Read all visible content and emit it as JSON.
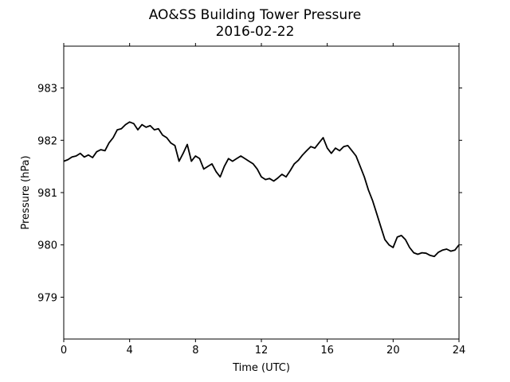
{
  "chart_data": {
    "type": "line",
    "title": "AO&SS Building Tower Pressure",
    "subtitle": "2016-02-22",
    "xlabel": "Time (UTC)",
    "ylabel": "Pressure (hPa)",
    "xlim": [
      0,
      24
    ],
    "ylim": [
      978.2,
      983.8
    ],
    "xticks": [
      0,
      4,
      8,
      12,
      16,
      20,
      24
    ],
    "yticks": [
      979,
      980,
      981,
      982,
      983
    ],
    "grid": false,
    "series": [
      {
        "color": "#000000",
        "x": [
          0,
          0.25,
          0.5,
          0.75,
          1.0,
          1.25,
          1.5,
          1.75,
          2.0,
          2.25,
          2.5,
          2.75,
          3.0,
          3.25,
          3.5,
          3.75,
          4.0,
          4.25,
          4.5,
          4.75,
          5.0,
          5.25,
          5.5,
          5.75,
          6.0,
          6.25,
          6.5,
          6.75,
          7.0,
          7.25,
          7.5,
          7.75,
          8.0,
          8.25,
          8.5,
          8.75,
          9.0,
          9.25,
          9.5,
          9.75,
          10.0,
          10.25,
          10.5,
          10.75,
          11.0,
          11.25,
          11.5,
          11.75,
          12.0,
          12.25,
          12.5,
          12.75,
          13.0,
          13.25,
          13.5,
          13.75,
          14.0,
          14.25,
          14.5,
          14.75,
          15.0,
          15.25,
          15.5,
          15.75,
          16.0,
          16.25,
          16.5,
          16.75,
          17.0,
          17.25,
          17.5,
          17.75,
          18.0,
          18.25,
          18.5,
          18.75,
          19.0,
          19.25,
          19.5,
          19.75,
          20.0,
          20.25,
          20.5,
          20.75,
          21.0,
          21.25,
          21.5,
          21.75,
          22.0,
          22.25,
          22.5,
          22.75,
          23.0,
          23.25,
          23.5,
          23.75,
          24.0
        ],
        "y": [
          981.6,
          981.63,
          981.68,
          981.7,
          981.75,
          981.68,
          981.72,
          981.67,
          981.78,
          981.82,
          981.8,
          981.95,
          982.05,
          982.2,
          982.22,
          982.3,
          982.35,
          982.32,
          982.2,
          982.3,
          982.25,
          982.28,
          982.2,
          982.22,
          982.1,
          982.05,
          981.95,
          981.9,
          981.6,
          981.75,
          981.92,
          981.6,
          981.7,
          981.65,
          981.45,
          981.5,
          981.55,
          981.4,
          981.3,
          981.5,
          981.65,
          981.6,
          981.65,
          981.7,
          981.65,
          981.6,
          981.55,
          981.45,
          981.3,
          981.25,
          981.27,
          981.22,
          981.28,
          981.35,
          981.3,
          981.42,
          981.55,
          981.62,
          981.72,
          981.8,
          981.88,
          981.85,
          981.95,
          982.05,
          981.85,
          981.75,
          981.85,
          981.8,
          981.88,
          981.9,
          981.8,
          981.7,
          981.5,
          981.3,
          981.05,
          980.85,
          980.6,
          980.35,
          980.1,
          980.0,
          979.95,
          980.15,
          980.18,
          980.1,
          979.95,
          979.85,
          979.82,
          979.85,
          979.84,
          979.8,
          979.78,
          979.86,
          979.9,
          979.92,
          979.88,
          979.9,
          980.0
        ]
      }
    ]
  }
}
